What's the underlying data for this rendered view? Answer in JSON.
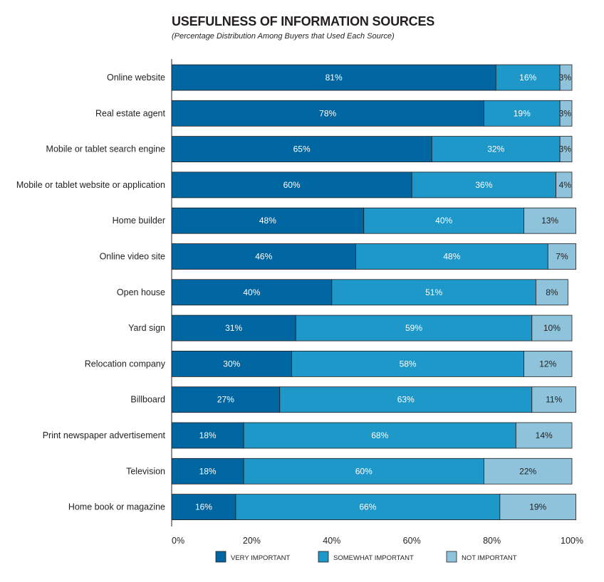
{
  "chart_data": {
    "type": "bar",
    "orientation": "horizontal",
    "stacked": true,
    "title": "USEFULNESS OF INFORMATION SOURCES",
    "subtitle": "(Percentage Distribution Among Buyers that Used Each Source)",
    "categories": [
      "Online website",
      "Real estate agent",
      "Mobile or tablet search engine",
      "Mobile or tablet website or application",
      "Home builder",
      "Online video site",
      "Open house",
      "Yard sign",
      "Relocation company",
      "Billboard",
      "Print newspaper advertisement",
      "Television",
      "Home book or magazine"
    ],
    "series": [
      {
        "name": "VERY IMPORTANT",
        "color": "#0066a1",
        "label_color": "#ffffff",
        "values": [
          81,
          78,
          65,
          60,
          48,
          46,
          40,
          31,
          30,
          27,
          18,
          18,
          16
        ]
      },
      {
        "name": "SOMEWHAT IMPORTANT",
        "color": "#1e97c9",
        "label_color": "#ffffff",
        "values": [
          16,
          19,
          32,
          36,
          40,
          48,
          51,
          59,
          58,
          63,
          68,
          60,
          66
        ]
      },
      {
        "name": "NOT IMPORTANT",
        "color": "#8ec3db",
        "label_color": "#231f20",
        "values": [
          3,
          3,
          3,
          4,
          13,
          7,
          8,
          10,
          12,
          11,
          14,
          22,
          19
        ]
      }
    ],
    "data_labels": [
      [
        "81%",
        "78%",
        "65%",
        "60%",
        "48%",
        "46%",
        "40%",
        "31%",
        "30%",
        "27%",
        "18%",
        "18%",
        "16%"
      ],
      [
        "16%",
        "19%",
        "32%",
        "36%",
        "40%",
        "48%",
        "51%",
        "59%",
        "58%",
        "63%",
        "68%",
        "60%",
        "66%"
      ],
      [
        "3%",
        "3%",
        "3%",
        "4%",
        "13%",
        "7%",
        "8%",
        "10%",
        "12%",
        "11%",
        "14%",
        "22%",
        "19%"
      ]
    ],
    "xlim": [
      0,
      100
    ],
    "xticks": [
      0,
      20,
      40,
      60,
      80,
      100
    ],
    "xtick_labels": [
      "0%",
      "20%",
      "40%",
      "60%",
      "80%",
      "100%"
    ],
    "grid": false,
    "legend": "bottom"
  }
}
